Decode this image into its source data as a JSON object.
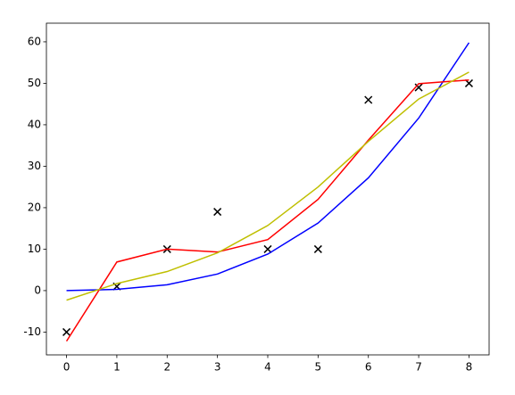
{
  "chart_data": {
    "type": "line",
    "x": [
      0,
      1,
      2,
      3,
      4,
      5,
      6,
      7,
      8
    ],
    "series": [
      {
        "kind": "scatter",
        "marker": "x",
        "color": "#000000",
        "values": [
          -10,
          1,
          10,
          19,
          10,
          10,
          46,
          49,
          50
        ]
      },
      {
        "kind": "line",
        "color": "#0000ff",
        "values": [
          0,
          0.3,
          1.4,
          4,
          8.8,
          16.3,
          27.2,
          41.6,
          59.8
        ]
      },
      {
        "kind": "line",
        "color": "#ff0000",
        "values": [
          -12.2,
          6.9,
          10,
          9.3,
          12.3,
          22,
          36.3,
          49.9,
          50.8
        ]
      },
      {
        "kind": "line",
        "color": "#bfbf00",
        "values": [
          -2.3,
          1.7,
          4.6,
          9.1,
          15.7,
          25,
          36,
          46.2,
          52.7
        ]
      }
    ],
    "xlim": [
      -0.4,
      8.4
    ],
    "ylim": [
      -15.5,
      64.5
    ],
    "xticks": [
      0,
      1,
      2,
      3,
      4,
      5,
      6,
      7,
      8
    ],
    "yticks": [
      -10,
      0,
      10,
      20,
      30,
      40,
      50,
      60
    ]
  }
}
